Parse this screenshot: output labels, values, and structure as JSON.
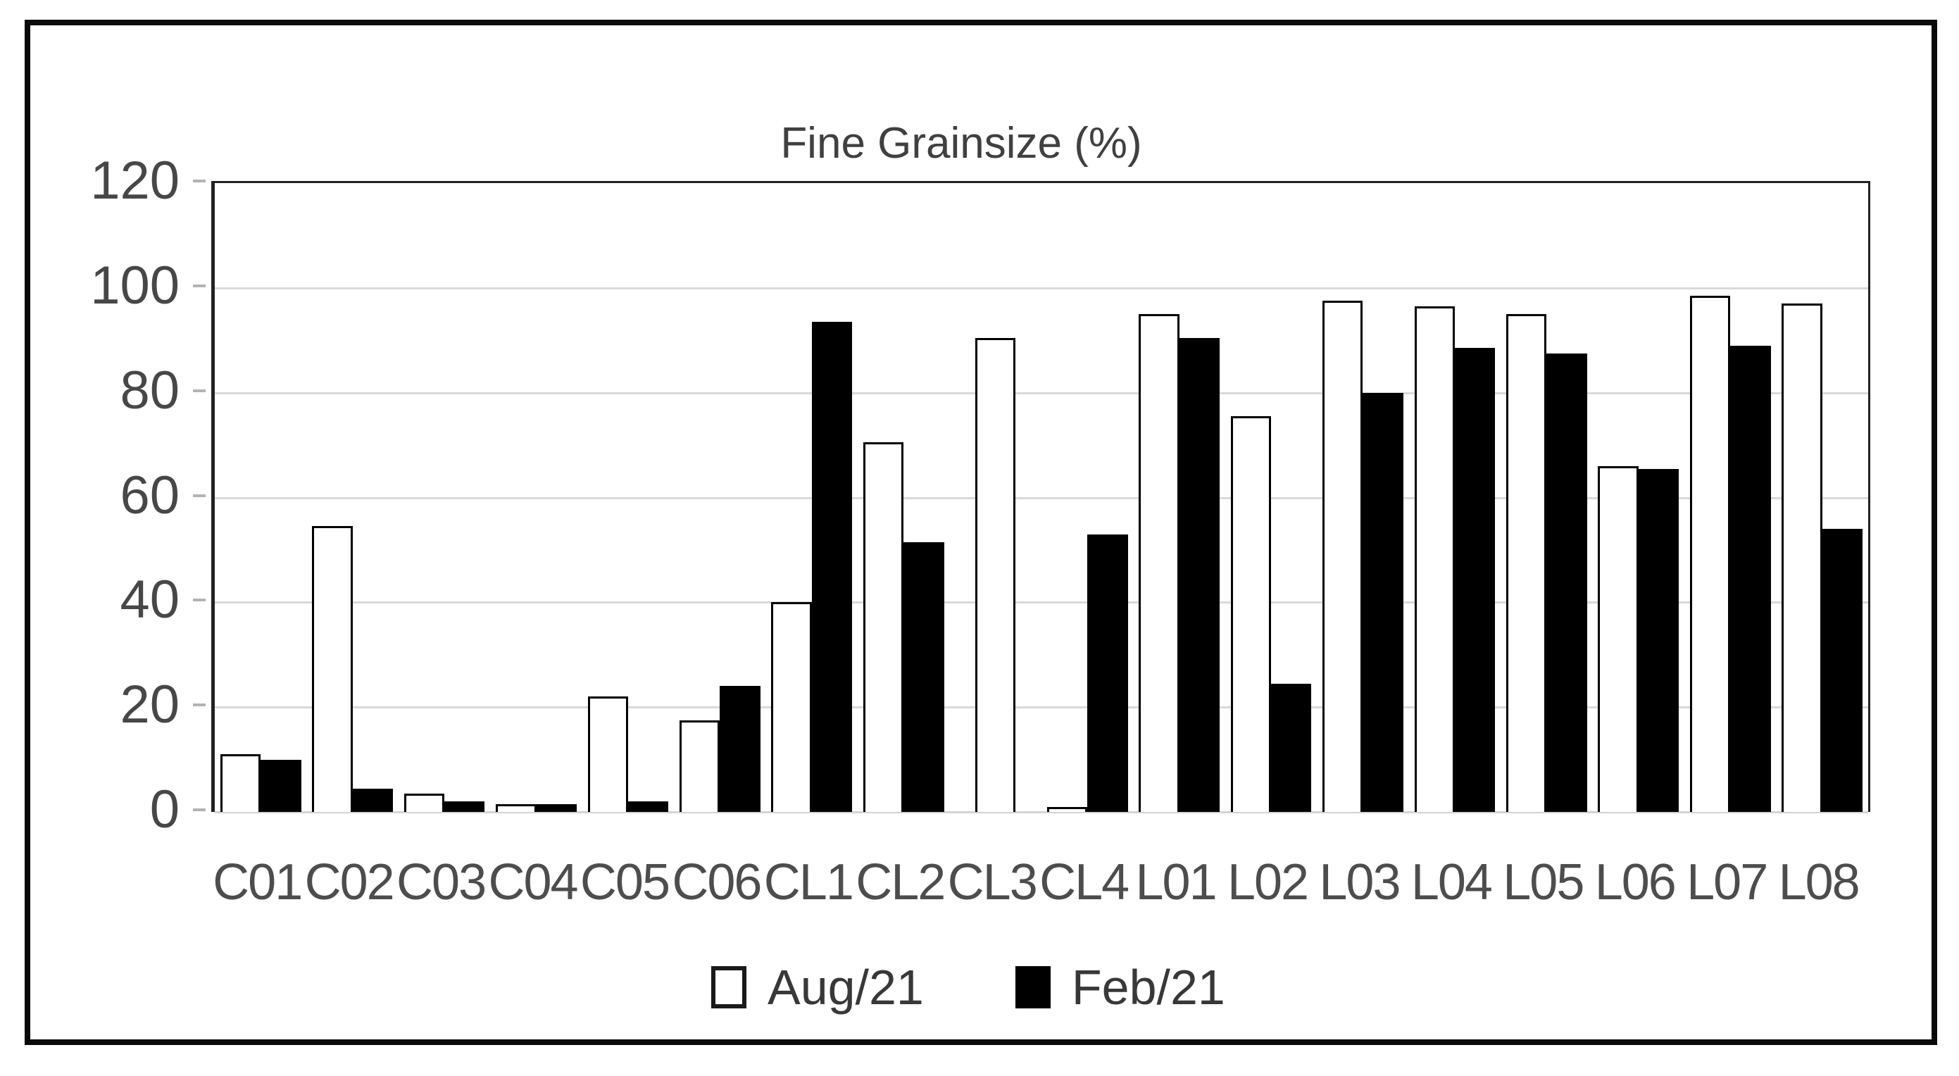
{
  "window": {
    "background": "#ffffff",
    "frame_border_color": "#0a0a0a"
  },
  "chart_data": {
    "type": "bar",
    "title": "Fine Grainsize (%)",
    "categories": [
      "C01",
      "C02",
      "C03",
      "C04",
      "C05",
      "C06",
      "CL1",
      "CL2",
      "CL3",
      "CL4",
      "L01",
      "L02",
      "L03",
      "L04",
      "L05",
      "L06",
      "L07",
      "L08"
    ],
    "series": [
      {
        "name": "Aug/21",
        "fill": "#ffffff",
        "border": "#000000",
        "values": [
          11,
          54.5,
          3.5,
          1.5,
          22,
          17.5,
          40,
          70.5,
          90.5,
          1,
          95,
          75.5,
          97.5,
          96.5,
          95,
          66,
          98.5,
          97
        ]
      },
      {
        "name": "Feb/21",
        "fill": "#000000",
        "border": "#000000",
        "values": [
          10,
          4.5,
          2,
          1.5,
          2,
          24,
          93.5,
          51.5,
          0,
          53,
          90.5,
          24.5,
          80,
          88.5,
          87.5,
          65.5,
          89,
          54
        ]
      }
    ],
    "xlabel": "",
    "ylabel": "",
    "ylim": [
      0,
      120
    ],
    "y_ticks": [
      0,
      20,
      40,
      60,
      80,
      100,
      120
    ],
    "grid": true,
    "gridline_color": "#d9d9d9",
    "axis_label_color": "#4d4d4d",
    "title_color": "#404040",
    "legend_position": "bottom"
  },
  "legend": {
    "items": [
      {
        "label": "Aug/21",
        "swatch": "outline"
      },
      {
        "label": "Feb/21",
        "swatch": "filled"
      }
    ]
  }
}
